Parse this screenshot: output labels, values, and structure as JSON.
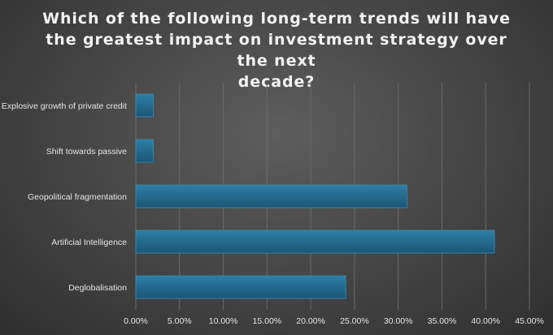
{
  "chart_data": {
    "type": "bar",
    "orientation": "horizontal",
    "title": "Which of the following long-term trends will have the greatest impact on investment strategy over the next decade?",
    "categories": [
      "Explosive growth of private credit",
      "Shift towards passive",
      "Geopolitical fragmentation",
      "Artificial Intelligence",
      "Deglobalisation"
    ],
    "values": [
      0.02,
      0.02,
      0.31,
      0.41,
      0.24
    ],
    "xlim": [
      0,
      0.45
    ],
    "x_ticks": [
      0,
      0.05,
      0.1,
      0.15,
      0.2,
      0.25,
      0.3,
      0.35,
      0.4,
      0.45
    ],
    "x_tick_labels": [
      "0.00%",
      "5.00%",
      "10.00%",
      "15.00%",
      "20.00%",
      "25.00%",
      "30.00%",
      "35.00%",
      "40.00%",
      "45.00%"
    ],
    "xlabel": "",
    "ylabel": "",
    "grid": "vertical",
    "legend": "none",
    "colors": {
      "bar_top": "#2f7ea6",
      "bar_bottom": "#1a5676",
      "bar_edge": "#3d8cb4",
      "gridline": "#6a6a6a",
      "text": "#e6e6e6"
    }
  }
}
